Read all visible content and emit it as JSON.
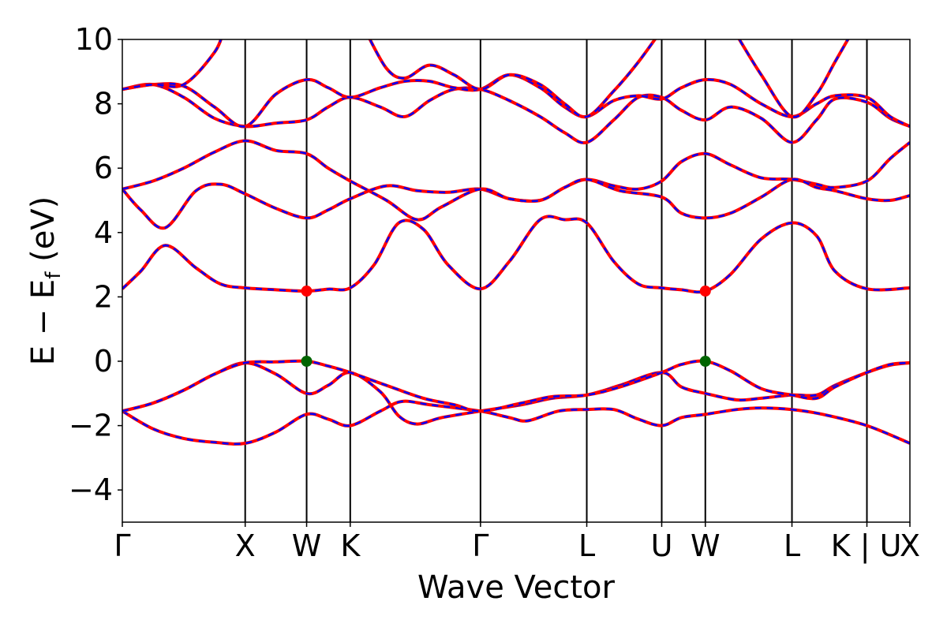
{
  "chart_data": {
    "type": "line",
    "title": "",
    "xlabel": "Wave Vector",
    "ylabel": "E − E",
    "ylabel_sub": "f",
    "ylabel_unit": " (eV)",
    "ylim": [
      -5,
      10
    ],
    "yticks": [
      -4,
      -2,
      0,
      2,
      4,
      6,
      8,
      10
    ],
    "ytick_labels": [
      "−4",
      "−2",
      "0",
      "2",
      "4",
      "6",
      "8",
      "10"
    ],
    "xlim": [
      0,
      12.82
    ],
    "kpoints": [
      {
        "label": "Γ",
        "x": 0
      },
      {
        "label": "X",
        "x": 2.0
      },
      {
        "label": "W",
        "x": 3.0
      },
      {
        "label": "K",
        "x": 3.71
      },
      {
        "label": "Γ",
        "x": 5.83
      },
      {
        "label": "L",
        "x": 7.56
      },
      {
        "label": "U",
        "x": 8.78
      },
      {
        "label": "W",
        "x": 9.49
      },
      {
        "label": "L",
        "x": 10.9
      },
      {
        "label": "K | U",
        "x": 12.12
      },
      {
        "label": "X",
        "x": 12.82
      }
    ],
    "colors": {
      "solid_line": "#ff0000",
      "dashed_line": "#0000ff",
      "cbm_marker": "#ff0000",
      "vbm_marker": "#006400"
    },
    "bands": [
      [
        [
          0,
          -1.55
        ],
        [
          0.5,
          -2.1
        ],
        [
          1.0,
          -2.4
        ],
        [
          1.5,
          -2.52
        ],
        [
          2.0,
          -2.55
        ],
        [
          2.5,
          -2.2
        ],
        [
          3.0,
          -1.65
        ],
        [
          3.35,
          -1.8
        ],
        [
          3.71,
          -2.0
        ],
        [
          4.2,
          -1.55
        ],
        [
          4.55,
          -1.25
        ],
        [
          5.0,
          -1.35
        ],
        [
          5.83,
          -1.55
        ],
        [
          6.3,
          -1.75
        ],
        [
          6.6,
          -1.85
        ],
        [
          7.1,
          -1.55
        ],
        [
          7.56,
          -1.5
        ],
        [
          8.0,
          -1.5
        ],
        [
          8.4,
          -1.8
        ],
        [
          8.78,
          -2.0
        ],
        [
          9.1,
          -1.75
        ],
        [
          9.49,
          -1.65
        ],
        [
          10.0,
          -1.5
        ],
        [
          10.4,
          -1.45
        ],
        [
          10.9,
          -1.5
        ],
        [
          11.4,
          -1.65
        ],
        [
          12.12,
          -2.0
        ],
        [
          12.82,
          -2.55
        ]
      ],
      [
        [
          0,
          -1.55
        ],
        [
          0.5,
          -1.3
        ],
        [
          1.0,
          -0.9
        ],
        [
          1.5,
          -0.4
        ],
        [
          2.0,
          -0.05
        ],
        [
          2.5,
          -0.4
        ],
        [
          3.0,
          -1.0
        ],
        [
          3.35,
          -0.75
        ],
        [
          3.71,
          -0.35
        ],
        [
          4.2,
          -0.95
        ],
        [
          4.5,
          -1.7
        ],
        [
          4.8,
          -1.95
        ],
        [
          5.2,
          -1.75
        ],
        [
          5.83,
          -1.55
        ],
        [
          6.5,
          -1.35
        ],
        [
          7.0,
          -1.15
        ],
        [
          7.56,
          -1.05
        ],
        [
          8.1,
          -0.75
        ],
        [
          8.78,
          -0.35
        ],
        [
          9.1,
          -0.8
        ],
        [
          9.49,
          -1.0
        ],
        [
          10.0,
          -1.2
        ],
        [
          10.4,
          -1.15
        ],
        [
          10.9,
          -1.05
        ],
        [
          11.3,
          -1.05
        ],
        [
          11.6,
          -0.75
        ],
        [
          12.12,
          -0.35
        ],
        [
          12.5,
          -0.12
        ],
        [
          12.82,
          -0.05
        ]
      ],
      [
        [
          0,
          -1.55
        ],
        [
          0.5,
          -1.3
        ],
        [
          1.0,
          -0.9
        ],
        [
          1.5,
          -0.4
        ],
        [
          2.0,
          -0.05
        ],
        [
          2.5,
          -0.02
        ],
        [
          3.0,
          0.0
        ],
        [
          3.35,
          -0.15
        ],
        [
          3.71,
          -0.35
        ],
        [
          4.3,
          -0.75
        ],
        [
          4.9,
          -1.15
        ],
        [
          5.4,
          -1.35
        ],
        [
          5.83,
          -1.55
        ],
        [
          6.5,
          -1.3
        ],
        [
          7.0,
          -1.1
        ],
        [
          7.56,
          -1.05
        ],
        [
          8.1,
          -0.8
        ],
        [
          8.78,
          -0.35
        ],
        [
          9.1,
          -0.1
        ],
        [
          9.49,
          0.0
        ],
        [
          9.9,
          -0.3
        ],
        [
          10.4,
          -0.85
        ],
        [
          10.9,
          -1.05
        ],
        [
          11.3,
          -1.15
        ],
        [
          11.6,
          -0.8
        ],
        [
          12.12,
          -0.35
        ],
        [
          12.5,
          -0.1
        ],
        [
          12.82,
          -0.05
        ]
      ],
      [
        [
          0,
          2.25
        ],
        [
          0.3,
          2.8
        ],
        [
          0.7,
          3.6
        ],
        [
          1.2,
          2.9
        ],
        [
          1.6,
          2.4
        ],
        [
          2.0,
          2.28
        ],
        [
          2.5,
          2.22
        ],
        [
          3.0,
          2.18
        ],
        [
          3.35,
          2.24
        ],
        [
          3.71,
          2.28
        ],
        [
          4.1,
          3.0
        ],
        [
          4.5,
          4.3
        ],
        [
          4.9,
          4.1
        ],
        [
          5.3,
          3.0
        ],
        [
          5.83,
          2.25
        ],
        [
          6.3,
          3.1
        ],
        [
          6.8,
          4.4
        ],
        [
          7.2,
          4.4
        ],
        [
          7.56,
          4.3
        ],
        [
          8.0,
          3.1
        ],
        [
          8.4,
          2.4
        ],
        [
          8.78,
          2.28
        ],
        [
          9.1,
          2.22
        ],
        [
          9.49,
          2.18
        ],
        [
          9.9,
          2.7
        ],
        [
          10.4,
          3.8
        ],
        [
          10.9,
          4.3
        ],
        [
          11.3,
          3.9
        ],
        [
          11.6,
          2.8
        ],
        [
          12.12,
          2.25
        ],
        [
          12.82,
          2.28
        ]
      ],
      [
        [
          0,
          5.35
        ],
        [
          0.3,
          4.7
        ],
        [
          0.7,
          4.15
        ],
        [
          1.2,
          5.3
        ],
        [
          1.6,
          5.5
        ],
        [
          2.0,
          5.2
        ],
        [
          2.5,
          4.75
        ],
        [
          3.0,
          4.45
        ],
        [
          3.35,
          4.7
        ],
        [
          3.71,
          5.05
        ],
        [
          4.3,
          5.45
        ],
        [
          4.8,
          5.3
        ],
        [
          5.3,
          5.25
        ],
        [
          5.83,
          5.35
        ],
        [
          6.3,
          5.05
        ],
        [
          6.8,
          5.0
        ],
        [
          7.2,
          5.4
        ],
        [
          7.56,
          5.65
        ],
        [
          8.0,
          5.45
        ],
        [
          8.4,
          5.35
        ],
        [
          8.78,
          5.6
        ],
        [
          9.1,
          6.2
        ],
        [
          9.49,
          6.45
        ],
        [
          9.9,
          6.1
        ],
        [
          10.4,
          5.7
        ],
        [
          10.9,
          5.65
        ],
        [
          11.3,
          5.5
        ],
        [
          11.6,
          5.4
        ],
        [
          12.12,
          5.6
        ],
        [
          12.5,
          6.3
        ],
        [
          12.82,
          6.8
        ]
      ],
      [
        [
          0,
          5.35
        ],
        [
          0.5,
          5.6
        ],
        [
          1.0,
          6.0
        ],
        [
          1.5,
          6.5
        ],
        [
          2.0,
          6.85
        ],
        [
          2.5,
          6.55
        ],
        [
          3.0,
          6.45
        ],
        [
          3.35,
          6.0
        ],
        [
          3.71,
          5.6
        ],
        [
          4.3,
          5.0
        ],
        [
          4.8,
          4.4
        ],
        [
          5.2,
          4.8
        ],
        [
          5.83,
          5.35
        ],
        [
          6.3,
          5.05
        ],
        [
          6.8,
          5.0
        ],
        [
          7.2,
          5.4
        ],
        [
          7.56,
          5.65
        ],
        [
          8.1,
          5.3
        ],
        [
          8.78,
          5.1
        ],
        [
          9.1,
          4.6
        ],
        [
          9.49,
          4.45
        ],
        [
          9.9,
          4.6
        ],
        [
          10.4,
          5.1
        ],
        [
          10.9,
          5.65
        ],
        [
          11.3,
          5.4
        ],
        [
          11.6,
          5.3
        ],
        [
          12.12,
          5.05
        ],
        [
          12.5,
          5.0
        ],
        [
          12.82,
          5.15
        ]
      ],
      [
        [
          0,
          8.45
        ],
        [
          0.5,
          8.6
        ],
        [
          1.0,
          8.2
        ],
        [
          1.5,
          7.55
        ],
        [
          2.0,
          7.3
        ],
        [
          2.5,
          7.4
        ],
        [
          3.0,
          7.5
        ],
        [
          3.35,
          7.9
        ],
        [
          3.71,
          8.2
        ],
        [
          4.2,
          7.9
        ],
        [
          4.6,
          7.6
        ],
        [
          5.0,
          8.1
        ],
        [
          5.4,
          8.45
        ],
        [
          5.83,
          8.45
        ],
        [
          6.3,
          8.1
        ],
        [
          6.8,
          7.6
        ],
        [
          7.2,
          7.1
        ],
        [
          7.56,
          6.8
        ],
        [
          8.0,
          7.5
        ],
        [
          8.4,
          8.2
        ],
        [
          8.78,
          8.2
        ],
        [
          9.1,
          7.8
        ],
        [
          9.49,
          7.5
        ],
        [
          9.9,
          7.9
        ],
        [
          10.4,
          7.55
        ],
        [
          10.9,
          6.8
        ],
        [
          11.3,
          7.5
        ],
        [
          11.6,
          8.15
        ],
        [
          12.12,
          8.05
        ],
        [
          12.5,
          7.55
        ],
        [
          12.82,
          7.3
        ]
      ],
      [
        [
          0,
          8.45
        ],
        [
          0.5,
          8.6
        ],
        [
          1.0,
          8.55
        ],
        [
          1.5,
          7.9
        ],
        [
          2.0,
          7.3
        ],
        [
          2.5,
          8.3
        ],
        [
          3.0,
          8.75
        ],
        [
          3.35,
          8.5
        ],
        [
          3.71,
          8.2
        ],
        [
          4.2,
          8.5
        ],
        [
          4.6,
          8.7
        ],
        [
          5.0,
          8.7
        ],
        [
          5.4,
          8.5
        ],
        [
          5.83,
          8.45
        ],
        [
          6.3,
          8.9
        ],
        [
          6.8,
          8.5
        ],
        [
          7.2,
          7.9
        ],
        [
          7.56,
          7.6
        ],
        [
          8.0,
          8.1
        ],
        [
          8.4,
          8.25
        ],
        [
          8.78,
          8.15
        ],
        [
          9.1,
          8.5
        ],
        [
          9.49,
          8.75
        ],
        [
          9.9,
          8.6
        ],
        [
          10.4,
          8.0
        ],
        [
          10.9,
          7.6
        ],
        [
          11.3,
          8.0
        ],
        [
          11.6,
          8.25
        ],
        [
          12.12,
          8.2
        ],
        [
          12.5,
          7.6
        ],
        [
          12.82,
          7.3
        ]
      ],
      [
        [
          0,
          8.45
        ],
        [
          0.5,
          8.6
        ],
        [
          1.0,
          8.6
        ],
        [
          1.5,
          9.6
        ],
        [
          1.65,
          10.3
        ]
      ],
      [
        [
          3.95,
          10.3
        ],
        [
          4.3,
          9.1
        ],
        [
          4.6,
          8.8
        ],
        [
          5.0,
          9.2
        ],
        [
          5.4,
          8.9
        ],
        [
          5.83,
          8.45
        ],
        [
          6.3,
          8.9
        ],
        [
          6.8,
          8.6
        ],
        [
          7.2,
          8.0
        ],
        [
          7.56,
          7.6
        ],
        [
          8.0,
          8.4
        ],
        [
          8.4,
          9.3
        ],
        [
          8.78,
          10.3
        ]
      ],
      [
        [
          9.95,
          10.3
        ],
        [
          10.4,
          8.9
        ],
        [
          10.9,
          7.6
        ],
        [
          11.3,
          8.3
        ],
        [
          11.6,
          9.3
        ],
        [
          11.9,
          10.3
        ]
      ]
    ],
    "markers": [
      {
        "kind": "cbm",
        "x": 3.0,
        "y": 2.18
      },
      {
        "kind": "cbm",
        "x": 9.49,
        "y": 2.18
      },
      {
        "kind": "vbm",
        "x": 3.0,
        "y": 0.0
      },
      {
        "kind": "vbm",
        "x": 9.49,
        "y": 0.0
      }
    ]
  }
}
